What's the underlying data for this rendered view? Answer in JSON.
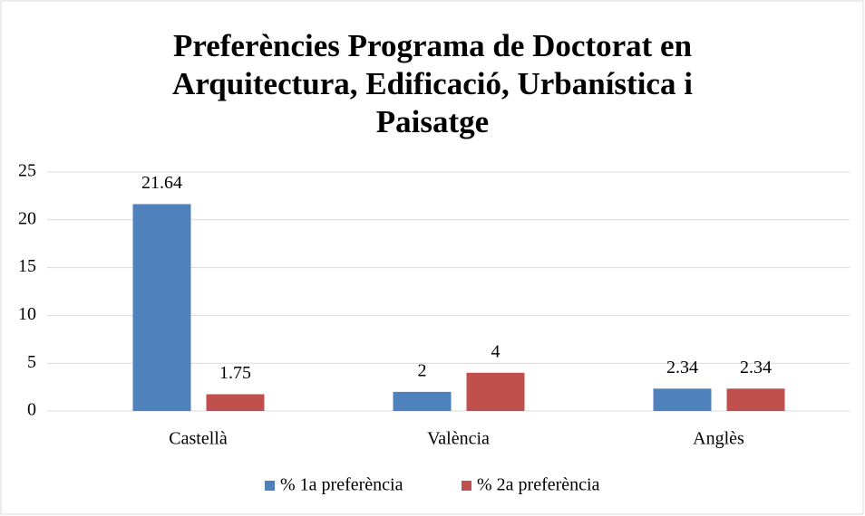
{
  "chart_data": {
    "type": "bar",
    "title": "Preferències Programa de Doctorat en Arquitectura, Edificació, Urbanística i Paisatge",
    "categories": [
      "Castellà",
      "València",
      "Anglès"
    ],
    "series": [
      {
        "name": "% 1a preferència",
        "color": "#4f81bd",
        "values": [
          21.64,
          2,
          2.34
        ]
      },
      {
        "name": "% 2a preferència",
        "color": "#c0504d",
        "values": [
          1.75,
          4,
          2.34
        ]
      }
    ],
    "ylim": [
      0,
      25
    ],
    "yticks": [
      0,
      5,
      10,
      15,
      20,
      25
    ],
    "grid": true,
    "legend": "bottom"
  }
}
